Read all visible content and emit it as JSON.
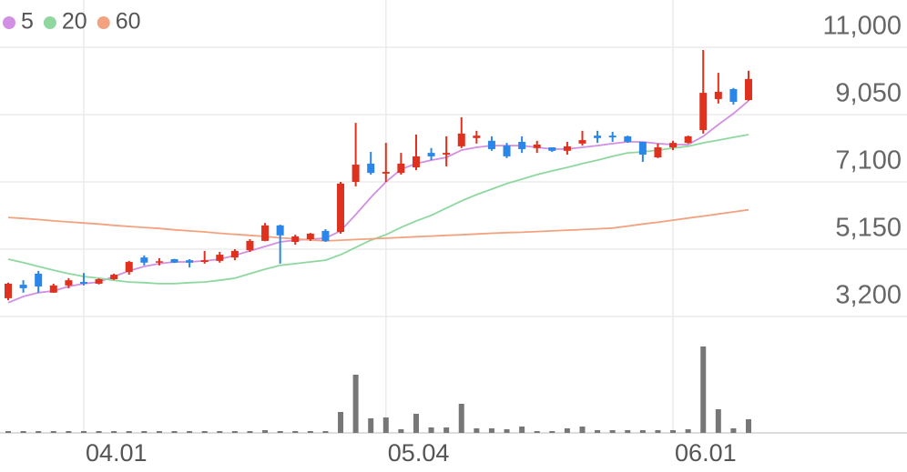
{
  "chart_data": {
    "type": "candlestick",
    "categories": [
      null,
      null,
      null,
      null,
      null,
      "04.01",
      null,
      null,
      null,
      null,
      null,
      null,
      null,
      null,
      null,
      null,
      null,
      null,
      null,
      null,
      null,
      null,
      null,
      null,
      null,
      "05.04",
      null,
      null,
      null,
      null,
      null,
      null,
      null,
      null,
      null,
      null,
      null,
      null,
      null,
      null,
      null,
      null,
      null,
      null,
      "06.01",
      null,
      null,
      null,
      null,
      null
    ],
    "open": [
      3730,
      4120,
      4440,
      3890,
      4100,
      4200,
      4150,
      4280,
      4490,
      4910,
      4760,
      4860,
      4830,
      4780,
      4810,
      4910,
      5120,
      5390,
      5840,
      5360,
      5440,
      5680,
      5650,
      7100,
      7630,
      7340,
      7360,
      7520,
      7940,
      7890,
      8130,
      8370,
      8290,
      8150,
      8260,
      8080,
      8100,
      8000,
      8210,
      8440,
      8440,
      8420,
      8260,
      7810,
      8100,
      8230,
      8600,
      9500,
      9790,
      9470
    ],
    "high": [
      4180,
      4250,
      4520,
      4150,
      4310,
      4460,
      4300,
      4440,
      4810,
      4970,
      4890,
      4870,
      4860,
      5100,
      5070,
      5150,
      5440,
      5910,
      5860,
      5570,
      5620,
      5730,
      7100,
      8810,
      7970,
      8230,
      7940,
      8470,
      8080,
      8420,
      8970,
      8580,
      8420,
      8230,
      8420,
      8290,
      8100,
      8260,
      8580,
      8580,
      8550,
      8440,
      8260,
      8210,
      8290,
      8440,
      10920,
      10260,
      9820,
      10320
    ],
    "low": [
      3670,
      3890,
      3890,
      3890,
      4020,
      4100,
      4130,
      4260,
      4410,
      4680,
      4680,
      4750,
      4620,
      4730,
      4760,
      4830,
      5070,
      5380,
      4730,
      5280,
      5390,
      5360,
      5600,
      6970,
      7310,
      7100,
      7310,
      7440,
      7730,
      7550,
      8080,
      8210,
      8000,
      7790,
      7940,
      7940,
      7970,
      7890,
      8150,
      8230,
      8260,
      8230,
      7680,
      7790,
      8020,
      8210,
      8500,
      9370,
      9340,
      9450
    ],
    "close": [
      4150,
      4020,
      4070,
      4100,
      4250,
      4150,
      4280,
      4410,
      4780,
      4760,
      4800,
      4760,
      4760,
      4830,
      4990,
      5100,
      5390,
      5840,
      5550,
      5520,
      5600,
      5390,
      7050,
      7600,
      7360,
      7390,
      7630,
      7840,
      7840,
      7940,
      8500,
      8440,
      8050,
      7840,
      8050,
      8180,
      8000,
      8130,
      8310,
      8370,
      8390,
      8260,
      7890,
      8100,
      8230,
      8420,
      9680,
      9710,
      9420,
      10080
    ],
    "up_color": "#e0301e",
    "down_color": "#2a86e8",
    "series": [
      {
        "name": "5",
        "color": "#d28fe3",
        "values": [
          3600,
          3780,
          3890,
          3940,
          4070,
          4150,
          4200,
          4360,
          4520,
          4650,
          4730,
          4780,
          4780,
          4810,
          4860,
          4970,
          5100,
          5230,
          5360,
          5410,
          5440,
          5470,
          5680,
          6150,
          6650,
          7100,
          7470,
          7630,
          7730,
          7810,
          8020,
          8100,
          8150,
          8150,
          8150,
          8100,
          8050,
          8050,
          8100,
          8150,
          8210,
          8260,
          8260,
          8210,
          8180,
          8180,
          8420,
          8760,
          9080,
          9450
        ]
      },
      {
        "name": "20",
        "color": "#8ed8a0",
        "values": [
          4860,
          4760,
          4650,
          4540,
          4440,
          4360,
          4310,
          4250,
          4200,
          4180,
          4150,
          4150,
          4180,
          4200,
          4250,
          4310,
          4440,
          4570,
          4680,
          4730,
          4780,
          4830,
          4990,
          5200,
          5410,
          5570,
          5780,
          5970,
          6130,
          6340,
          6550,
          6730,
          6890,
          7050,
          7180,
          7310,
          7420,
          7520,
          7630,
          7730,
          7840,
          7940,
          7970,
          8020,
          8080,
          8130,
          8230,
          8310,
          8390,
          8470
        ]
      },
      {
        "name": "60",
        "color": "#f2a27e",
        "values": [
          6070,
          6040,
          6010,
          5970,
          5940,
          5910,
          5880,
          5840,
          5810,
          5780,
          5750,
          5710,
          5680,
          5650,
          5610,
          5580,
          5550,
          5520,
          5480,
          5450,
          5420,
          5390,
          5410,
          5430,
          5450,
          5470,
          5490,
          5510,
          5530,
          5550,
          5570,
          5590,
          5610,
          5630,
          5640,
          5660,
          5680,
          5700,
          5720,
          5740,
          5760,
          5820,
          5880,
          5930,
          5990,
          6050,
          6110,
          6170,
          6230,
          6290
        ]
      }
    ],
    "volume": [
      2,
      2,
      2,
      2,
      2,
      2,
      2,
      2,
      2,
      2,
      2,
      2,
      2,
      2,
      2,
      2,
      2,
      3,
      2,
      2,
      2,
      2,
      23,
      64,
      16,
      17,
      4,
      21,
      6,
      6,
      32,
      5,
      5,
      4,
      7,
      2,
      2,
      5,
      7,
      3,
      3,
      3,
      3,
      3,
      3,
      4,
      95,
      26,
      5,
      15
    ],
    "volume_color": "#777777",
    "ylim": [
      3200,
      12370
    ],
    "yticks": [
      {
        "value": 3200,
        "label": "3,200"
      },
      {
        "value": 5150,
        "label": "5,150"
      },
      {
        "value": 7100,
        "label": "7,100"
      },
      {
        "value": 9050,
        "label": "9,050"
      },
      {
        "value": 11000,
        "label": "11,000"
      }
    ],
    "grid": true
  }
}
